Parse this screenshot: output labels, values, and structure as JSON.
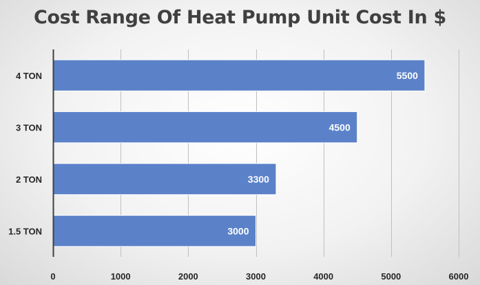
{
  "chart_data": {
    "type": "bar",
    "orientation": "horizontal",
    "title": "Cost Range Of Heat Pump Unit Cost In $",
    "categories": [
      "4 TON",
      "3 TON",
      "2 TON",
      "1.5 TON"
    ],
    "values": [
      5500,
      4500,
      3300,
      3000
    ],
    "data_labels": [
      "5500",
      "4500",
      "3300",
      "3000"
    ],
    "xlim": [
      0,
      6000
    ],
    "x_ticks": [
      0,
      1000,
      2000,
      3000,
      4000,
      5000,
      6000
    ],
    "x_tick_labels": [
      "0",
      "1000",
      "2000",
      "3000",
      "4000",
      "5000",
      "6000"
    ],
    "xlabel": "",
    "ylabel": "",
    "grid": "vertical",
    "legend": "none",
    "colors": {
      "bar": "#5b82c9",
      "bar_edge": "#ffffff",
      "grid": "#bfbfbf",
      "axis": "#404040",
      "title": "#404040"
    }
  }
}
